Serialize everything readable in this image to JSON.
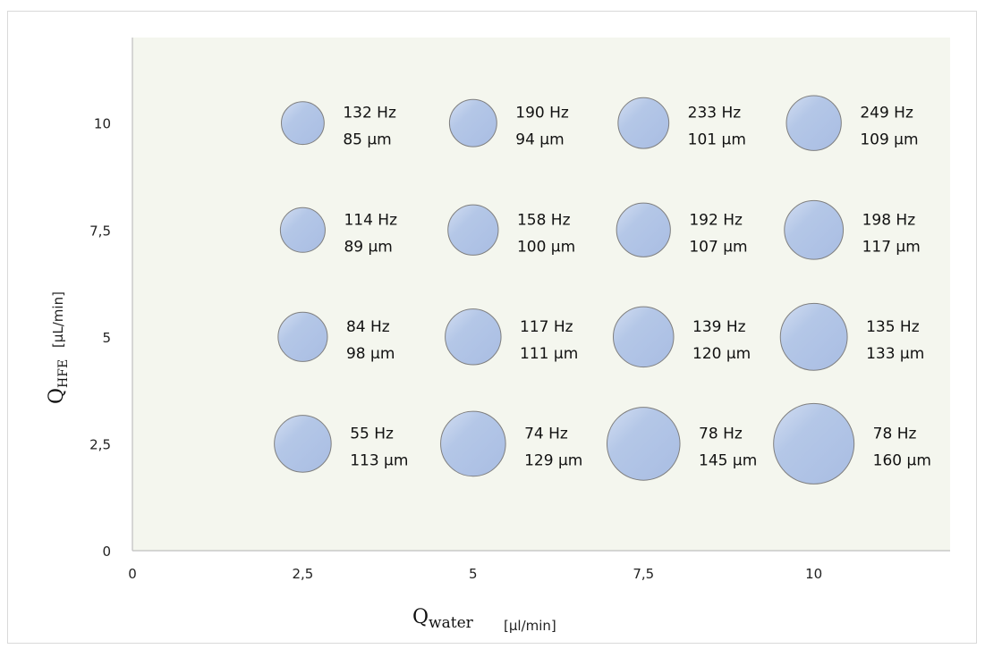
{
  "chart_data": {
    "type": "bubble",
    "title": "",
    "xlabel_main": "Q",
    "xlabel_sub": "water",
    "xlabel_unit": "[µl/min]",
    "ylabel_main": "Q",
    "ylabel_sub": "HFE",
    "ylabel_unit": "[µL/min]",
    "xlim": [
      0,
      12
    ],
    "ylim": [
      0,
      12
    ],
    "x_ticks": [
      {
        "value": 0,
        "label": "0"
      },
      {
        "value": 2.5,
        "label": "2,5"
      },
      {
        "value": 5,
        "label": "5"
      },
      {
        "value": 7.5,
        "label": "7,5"
      },
      {
        "value": 10,
        "label": "10"
      }
    ],
    "y_ticks": [
      {
        "value": 0,
        "label": "0"
      },
      {
        "value": 2.5,
        "label": "2,5"
      },
      {
        "value": 5,
        "label": "5"
      },
      {
        "value": 7.5,
        "label": "7,5"
      },
      {
        "value": 10,
        "label": "10"
      }
    ],
    "grid": false,
    "plot_background": "#f4f6ee",
    "bubble_color": "#b4c7e7",
    "bubble_edge": "#7f7f7f",
    "points": [
      {
        "x": 2.5,
        "y": 10,
        "size_um": 85,
        "freq": "132 Hz",
        "size": "85 µm"
      },
      {
        "x": 5,
        "y": 10,
        "size_um": 94,
        "freq": "190 Hz",
        "size": "94 µm"
      },
      {
        "x": 7.5,
        "y": 10,
        "size_um": 101,
        "freq": "233 Hz",
        "size": "101 µm"
      },
      {
        "x": 10,
        "y": 10,
        "size_um": 109,
        "freq": "249 Hz",
        "size": "109 µm"
      },
      {
        "x": 2.5,
        "y": 7.5,
        "size_um": 89,
        "freq": "114 Hz",
        "size": "89 µm"
      },
      {
        "x": 5,
        "y": 7.5,
        "size_um": 100,
        "freq": "158 Hz",
        "size": "100 µm"
      },
      {
        "x": 7.5,
        "y": 7.5,
        "size_um": 107,
        "freq": "192 Hz",
        "size": "107 µm"
      },
      {
        "x": 10,
        "y": 7.5,
        "size_um": 117,
        "freq": "198 Hz",
        "size": "117 µm"
      },
      {
        "x": 2.5,
        "y": 5,
        "size_um": 98,
        "freq": "84 Hz",
        "size": "98 µm"
      },
      {
        "x": 5,
        "y": 5,
        "size_um": 111,
        "freq": "117 Hz",
        "size": "111 µm"
      },
      {
        "x": 7.5,
        "y": 5,
        "size_um": 120,
        "freq": "139 Hz",
        "size": "120 µm"
      },
      {
        "x": 10,
        "y": 5,
        "size_um": 133,
        "freq": "135 Hz",
        "size": "133 µm"
      },
      {
        "x": 2.5,
        "y": 2.5,
        "size_um": 113,
        "freq": "55 Hz",
        "size": "113 µm"
      },
      {
        "x": 5,
        "y": 2.5,
        "size_um": 129,
        "freq": "74 Hz",
        "size": "129 µm"
      },
      {
        "x": 7.5,
        "y": 2.5,
        "size_um": 145,
        "freq": "78 Hz",
        "size": "145 µm"
      },
      {
        "x": 10,
        "y": 2.5,
        "size_um": 160,
        "freq": "78 Hz",
        "size": "160 µm"
      }
    ]
  }
}
